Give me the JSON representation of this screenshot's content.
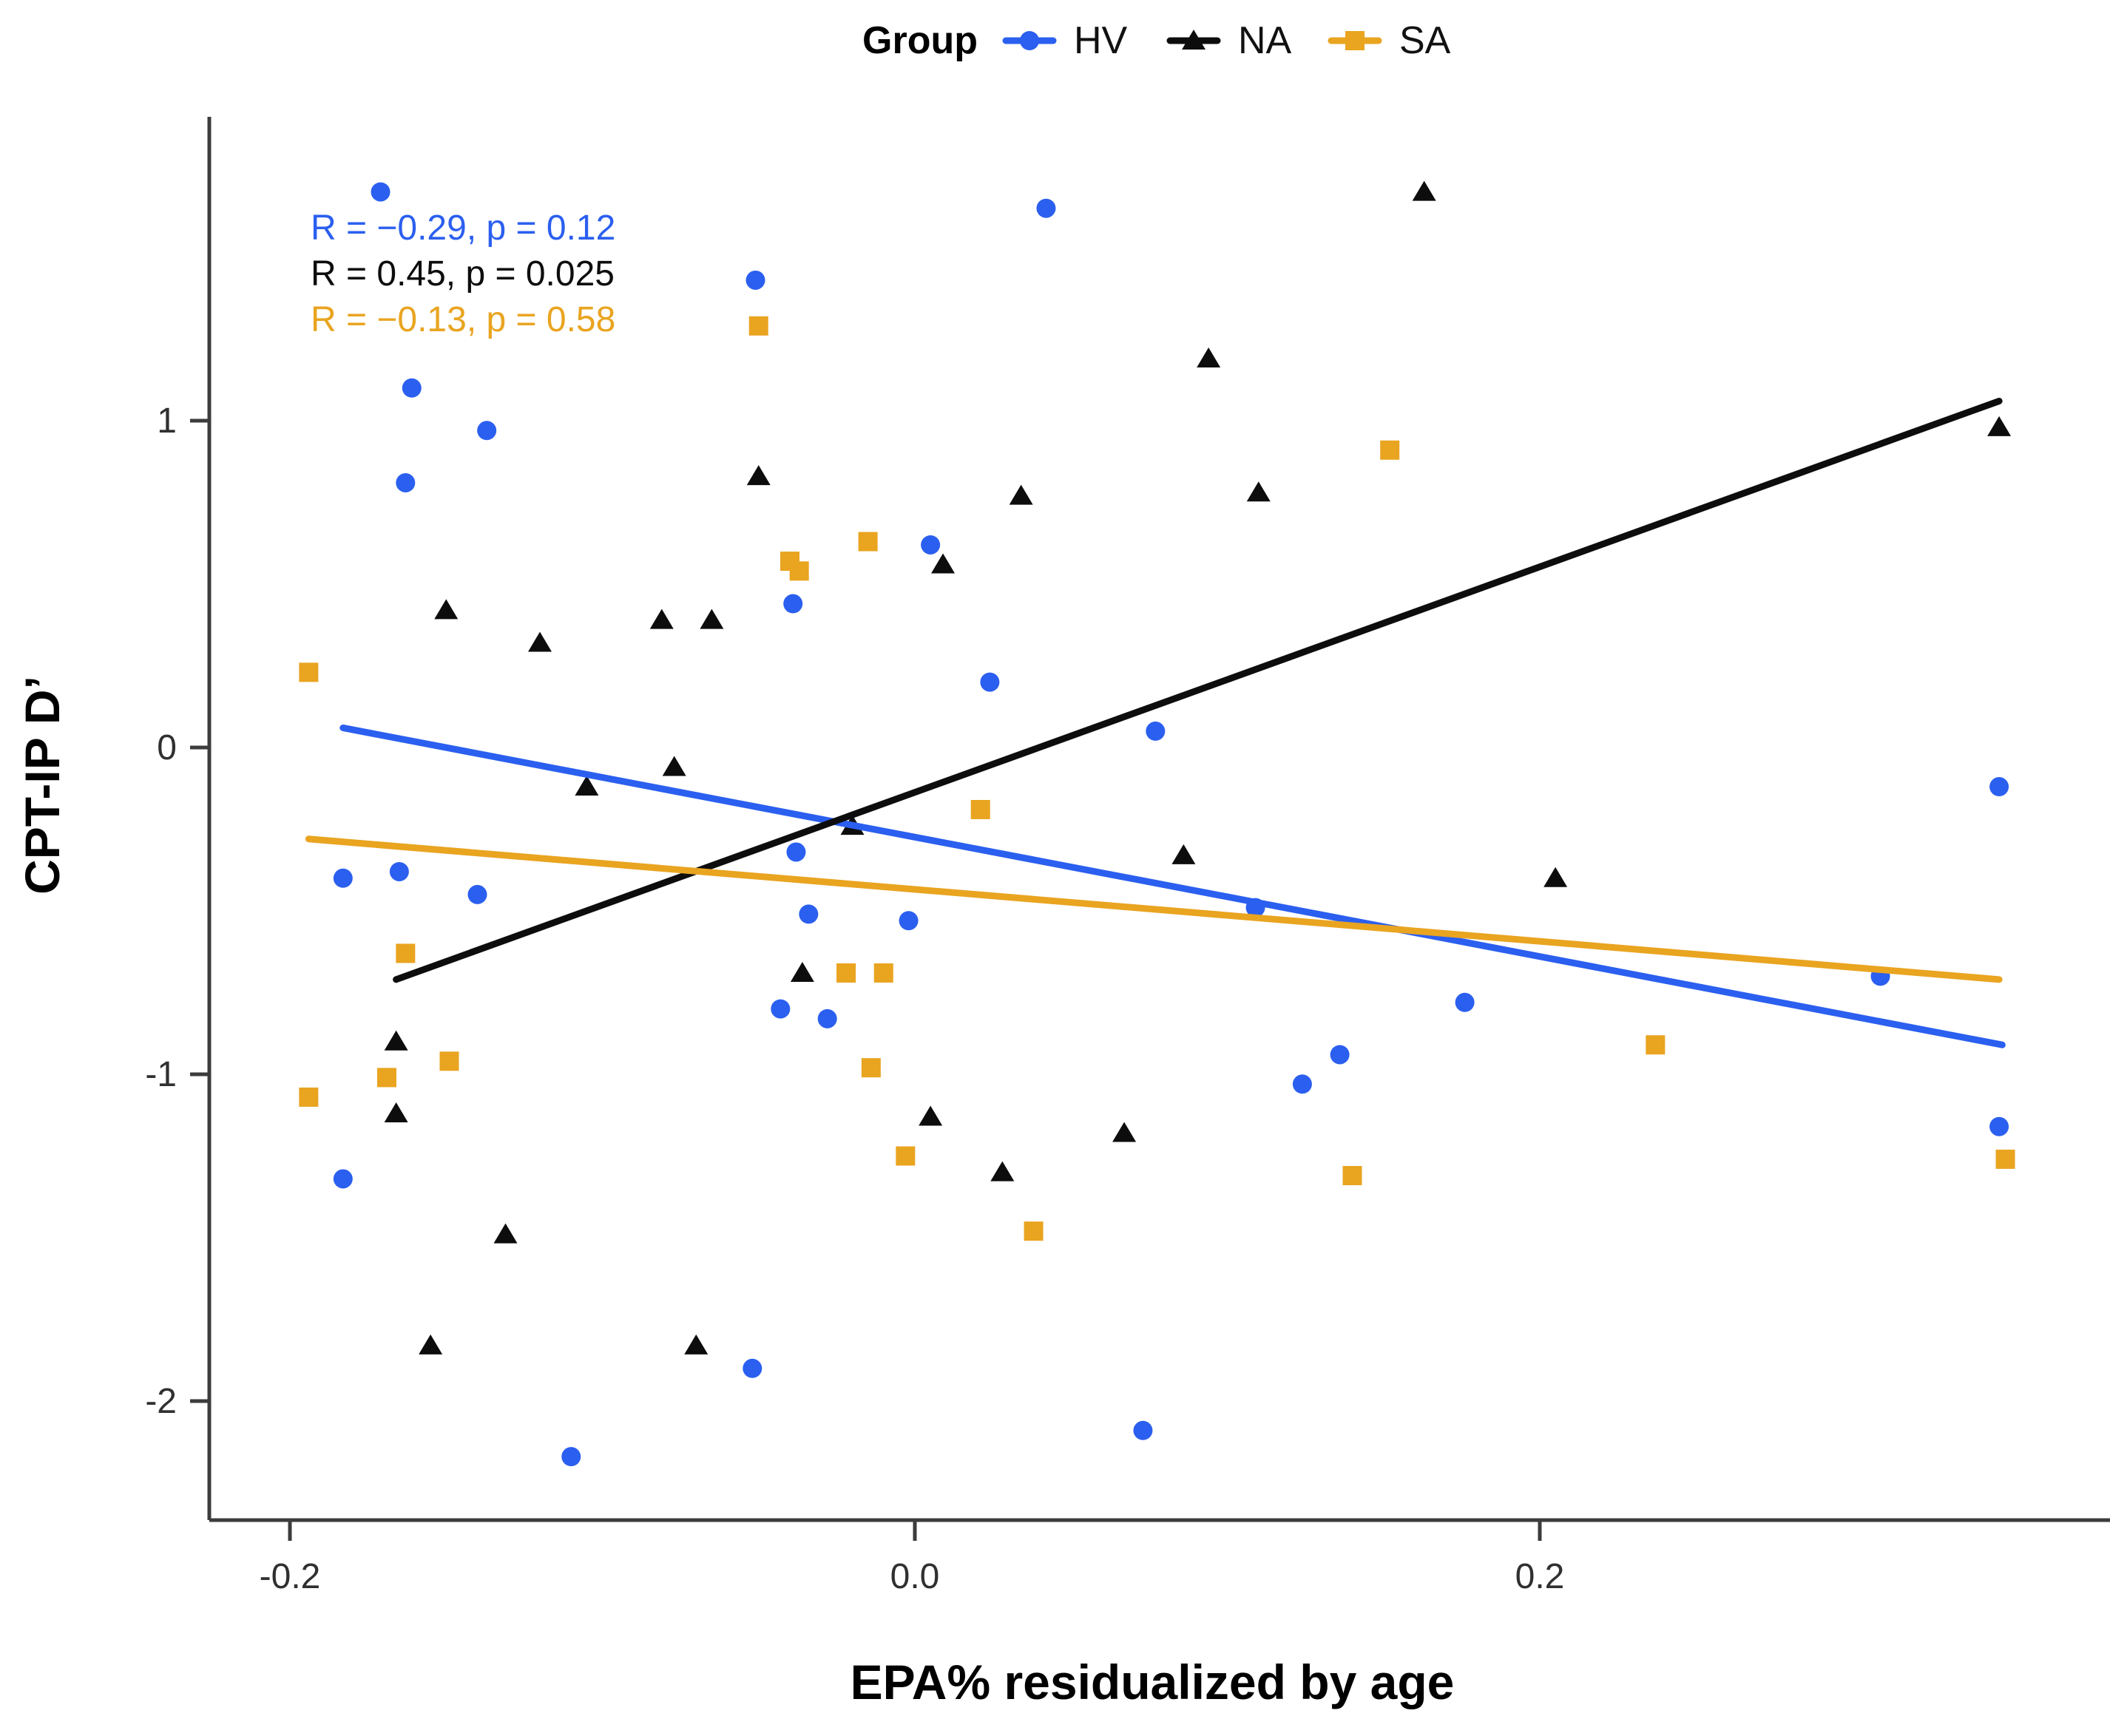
{
  "chart_data": {
    "type": "scatter",
    "title": "",
    "xlabel": "EPA% residualized by age",
    "ylabel": "CPT-IP D’",
    "xlim": [
      -0.226,
      0.383
    ],
    "ylim": [
      -2.36,
      1.93
    ],
    "grid": false,
    "legend_position": "top",
    "legend_title": "Group",
    "axis_color": "#3c3c3c",
    "tick_label_color": "#303030",
    "x_ticks": [
      {
        "value": -0.2,
        "label": "-0.2"
      },
      {
        "value": 0.0,
        "label": "0.0"
      },
      {
        "value": 0.2,
        "label": "0.2"
      }
    ],
    "y_ticks": [
      {
        "value": 1,
        "label": "1"
      },
      {
        "value": 0,
        "label": "0"
      },
      {
        "value": -1,
        "label": "-1"
      },
      {
        "value": -2,
        "label": "-2"
      }
    ],
    "series": [
      {
        "name": "HV",
        "marker": "circle",
        "color": "#2B5FEF",
        "annotation": "R = −0.29, p = 0.12",
        "trend": {
          "x": [
            -0.183,
            0.348
          ],
          "y": [
            0.06,
            -0.91
          ]
        },
        "points": [
          [
            -0.171,
            1.7
          ],
          [
            0.042,
            1.65
          ],
          [
            -0.051,
            1.43
          ],
          [
            -0.161,
            1.1
          ],
          [
            -0.137,
            0.97
          ],
          [
            -0.163,
            0.81
          ],
          [
            0.005,
            0.62
          ],
          [
            -0.039,
            0.44
          ],
          [
            0.024,
            0.2
          ],
          [
            0.077,
            0.05
          ],
          [
            -0.183,
            -0.4
          ],
          [
            -0.165,
            -0.38
          ],
          [
            -0.14,
            -0.45
          ],
          [
            -0.038,
            -0.32
          ],
          [
            -0.034,
            -0.51
          ],
          [
            -0.002,
            -0.53
          ],
          [
            -0.043,
            -0.8
          ],
          [
            -0.028,
            -0.83
          ],
          [
            -0.183,
            -1.32
          ],
          [
            -0.052,
            -1.9
          ],
          [
            -0.11,
            -2.17
          ],
          [
            0.073,
            -2.09
          ],
          [
            0.109,
            -0.49
          ],
          [
            0.176,
            -0.78
          ],
          [
            0.136,
            -0.94
          ],
          [
            0.124,
            -1.03
          ],
          [
            0.309,
            -0.7
          ],
          [
            0.347,
            -0.12
          ],
          [
            0.347,
            -1.16
          ]
        ]
      },
      {
        "name": "NA",
        "marker": "triangle",
        "color": "#0d0d0d",
        "annotation": "R = 0.45, p = 0.025",
        "trend": {
          "x": [
            -0.166,
            0.347
          ],
          "y": [
            -0.71,
            1.06
          ]
        },
        "points": [
          [
            0.163,
            1.7
          ],
          [
            0.094,
            1.19
          ],
          [
            0.347,
            0.98
          ],
          [
            -0.05,
            0.83
          ],
          [
            0.034,
            0.77
          ],
          [
            0.11,
            0.78
          ],
          [
            -0.15,
            0.42
          ],
          [
            -0.081,
            0.39
          ],
          [
            -0.065,
            0.39
          ],
          [
            -0.12,
            0.32
          ],
          [
            0.009,
            0.56
          ],
          [
            -0.077,
            -0.06
          ],
          [
            -0.105,
            -0.12
          ],
          [
            0.086,
            -0.33
          ],
          [
            0.205,
            -0.4
          ],
          [
            -0.02,
            -0.24
          ],
          [
            -0.036,
            -0.69
          ],
          [
            -0.166,
            -0.9
          ],
          [
            -0.166,
            -1.12
          ],
          [
            0.005,
            -1.13
          ],
          [
            0.067,
            -1.18
          ],
          [
            0.028,
            -1.3
          ],
          [
            -0.131,
            -1.49
          ],
          [
            -0.155,
            -1.83
          ],
          [
            -0.07,
            -1.83
          ]
        ]
      },
      {
        "name": "SA",
        "marker": "square",
        "color": "#E9A420",
        "annotation": "R = −0.13, p = 0.58",
        "trend": {
          "x": [
            -0.194,
            0.347
          ],
          "y": [
            -0.28,
            -0.71
          ]
        },
        "points": [
          [
            -0.05,
            1.29
          ],
          [
            0.152,
            0.91
          ],
          [
            -0.015,
            0.63
          ],
          [
            -0.04,
            0.57
          ],
          [
            -0.037,
            0.54
          ],
          [
            -0.194,
            0.23
          ],
          [
            0.021,
            -0.19
          ],
          [
            -0.163,
            -0.63
          ],
          [
            -0.022,
            -0.69
          ],
          [
            -0.01,
            -0.69
          ],
          [
            -0.149,
            -0.96
          ],
          [
            -0.169,
            -1.01
          ],
          [
            -0.194,
            -1.07
          ],
          [
            -0.014,
            -0.98
          ],
          [
            -0.003,
            -1.25
          ],
          [
            0.038,
            -1.48
          ],
          [
            0.237,
            -0.91
          ],
          [
            0.14,
            -1.31
          ],
          [
            0.349,
            -1.26
          ]
        ]
      }
    ]
  }
}
